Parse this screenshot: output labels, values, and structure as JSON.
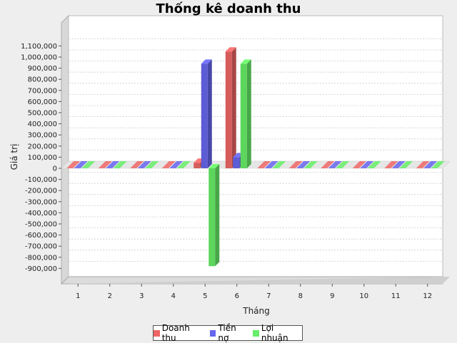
{
  "chart_data": {
    "type": "bar",
    "title": "Thống kê doanh thu",
    "xlabel": "Tháng",
    "ylabel": "Giá trị",
    "categories": [
      "1",
      "2",
      "3",
      "4",
      "5",
      "6",
      "7",
      "8",
      "9",
      "10",
      "11",
      "12"
    ],
    "series": [
      {
        "name": "Doanh thu",
        "color": "#ee6666",
        "values": [
          0,
          0,
          0,
          0,
          50000,
          1050000,
          0,
          0,
          0,
          0,
          0,
          0
        ]
      },
      {
        "name": "Tiền nợ",
        "color": "#6666ee",
        "values": [
          0,
          0,
          0,
          0,
          940000,
          100000,
          0,
          0,
          0,
          0,
          0,
          0
        ]
      },
      {
        "name": "Lợi nhuận",
        "color": "#66ee66",
        "values": [
          0,
          0,
          0,
          0,
          -880000,
          940000,
          0,
          0,
          0,
          0,
          0,
          0
        ]
      }
    ],
    "ylim": [
      -1000000,
      1150000
    ],
    "yticks": [
      1100000,
      1000000,
      900000,
      800000,
      700000,
      600000,
      500000,
      400000,
      300000,
      200000,
      100000,
      0,
      -100000,
      -200000,
      -300000,
      -400000,
      -500000,
      -600000,
      -700000,
      -800000,
      -900000
    ],
    "ytick_labels": [
      "1,100,000",
      "1,000,000",
      "900,000",
      "800,000",
      "700,000",
      "600,000",
      "500,000",
      "400,000",
      "300,000",
      "200,000",
      "100,000",
      "0",
      "-100,000",
      "-200,000",
      "-300,000",
      "-400,000",
      "-500,000",
      "-600,000",
      "-700,000",
      "-800,000",
      "-900,000"
    ],
    "grid": true,
    "legend": "bottom"
  }
}
